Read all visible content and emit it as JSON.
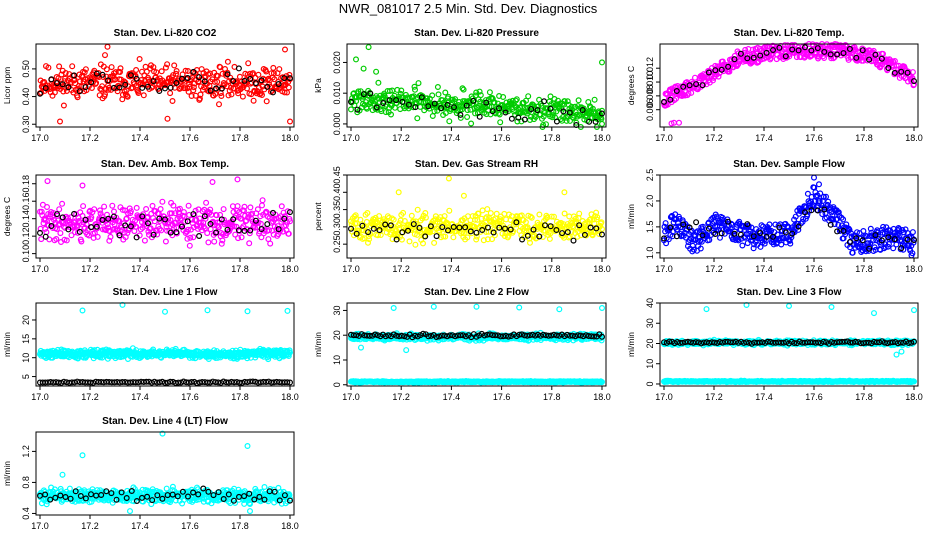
{
  "page": {
    "title": "NWR_081017  2.5 Min. Std. Dev. Diagnostics"
  },
  "colors": {
    "red": "#ff0000",
    "green": "#00cc00",
    "magenta": "#ff00ff",
    "yellow": "#ffff00",
    "blue": "#0000ff",
    "cyan": "#00ffff",
    "black": "#000000"
  },
  "chart_data": [
    {
      "type": "scatter",
      "title": "Stan. Dev. Li-820 CO2",
      "ylabel": "Licor ppm",
      "xlim": [
        17.0,
        18.0
      ],
      "xticks": [
        "17.0",
        "17.2",
        "17.4",
        "17.6",
        "17.8",
        "18.0"
      ],
      "ylim": [
        0.29,
        0.59
      ],
      "yticks": [
        "0.30",
        "0.40",
        "0.50"
      ],
      "ytick_values": [
        0.3,
        0.4,
        0.5
      ],
      "color": "#ff0000",
      "series": [
        {
          "name": "main",
          "band": [
            0.36,
            0.54
          ],
          "n": 420,
          "seed": 11
        },
        {
          "name": "reference",
          "color": "#000000",
          "band": [
            0.38,
            0.52
          ],
          "n": 45,
          "seed": 12
        }
      ],
      "outliers": [
        [
          17.27,
          0.58
        ],
        [
          17.26,
          0.55
        ],
        [
          18.0,
          0.31
        ],
        [
          17.98,
          0.57
        ],
        [
          17.08,
          0.31
        ],
        [
          17.51,
          0.32
        ]
      ]
    },
    {
      "type": "scatter",
      "title": "Stan. Dev. Li-820 Pressure",
      "ylabel": "kPa",
      "xlim": [
        17.0,
        18.0
      ],
      "xticks": [
        "17.0",
        "17.2",
        "17.4",
        "17.6",
        "17.8",
        "18.0"
      ],
      "ylim": [
        -0.001,
        0.026
      ],
      "yticks": [
        "0.000",
        "0.010",
        "0.020"
      ],
      "ytick_values": [
        0.0,
        0.01,
        0.02
      ],
      "color": "#00cc00",
      "series": [
        {
          "name": "main",
          "band": [
            0.002,
            0.015
          ],
          "n": 440,
          "seed": 21,
          "trend": -0.004
        },
        {
          "name": "reference",
          "color": "#000000",
          "band": [
            0.003,
            0.012
          ],
          "n": 40,
          "seed": 22,
          "trend": -0.004
        }
      ],
      "outliers": [
        [
          17.07,
          0.025
        ],
        [
          17.02,
          0.021
        ],
        [
          18.0,
          0.02
        ],
        [
          17.05,
          0.018
        ],
        [
          17.1,
          0.017
        ],
        [
          18.0,
          0.0
        ]
      ]
    },
    {
      "type": "scatter",
      "title": "Stan. Dev. Li-820 Temp.",
      "ylabel": "degrees C",
      "xlim": [
        17.0,
        18.0
      ],
      "xticks": [
        "17.0",
        "17.2",
        "17.4",
        "17.6",
        "17.8",
        "18.0"
      ],
      "ylim": [
        0.0035,
        0.0155
      ],
      "yticks": [
        "0.006",
        "0.008",
        "0.010",
        "0.012"
      ],
      "ytick_values": [
        0.006,
        0.008,
        0.01,
        0.012
      ],
      "color": "#ff00ff",
      "series": [
        {
          "name": "main",
          "n": 460,
          "seed": 31,
          "curve": [
            [
              17.0,
              0.0075
            ],
            [
              17.15,
              0.01
            ],
            [
              17.3,
              0.0135
            ],
            [
              17.5,
              0.0145
            ],
            [
              17.7,
              0.0145
            ],
            [
              17.85,
              0.0135
            ],
            [
              18.0,
              0.0105
            ]
          ],
          "spread": 0.0022
        },
        {
          "name": "reference",
          "color": "#000000",
          "n": 40,
          "seed": 32,
          "curve": [
            [
              17.0,
              0.0075
            ],
            [
              17.15,
              0.01
            ],
            [
              17.3,
              0.0135
            ],
            [
              17.5,
              0.0145
            ],
            [
              17.7,
              0.0145
            ],
            [
              17.85,
              0.0135
            ],
            [
              18.0,
              0.0105
            ]
          ],
          "spread": 0.0015
        }
      ],
      "outliers": [
        [
          17.03,
          0.004
        ],
        [
          17.04,
          0.0041
        ],
        [
          17.06,
          0.0041
        ]
      ]
    },
    {
      "type": "scatter",
      "title": "Stan. Dev. Amb. Box Temp.",
      "ylabel": "degrees C",
      "xlim": [
        17.0,
        18.0
      ],
      "xticks": [
        "17.0",
        "17.2",
        "17.4",
        "17.6",
        "17.8",
        "18.0"
      ],
      "ylim": [
        0.095,
        0.19
      ],
      "yticks": [
        "0.10",
        "0.12",
        "0.14",
        "0.16",
        "0.18"
      ],
      "ytick_values": [
        0.1,
        0.12,
        0.14,
        0.16,
        0.18
      ],
      "color": "#ff00ff",
      "series": [
        {
          "name": "main",
          "band": [
            0.105,
            0.165
          ],
          "n": 430,
          "seed": 41
        },
        {
          "name": "reference",
          "color": "#000000",
          "band": [
            0.11,
            0.155
          ],
          "n": 45,
          "seed": 42
        }
      ],
      "outliers": [
        [
          17.79,
          0.185
        ],
        [
          17.69,
          0.182
        ],
        [
          17.17,
          0.178
        ],
        [
          17.03,
          0.183
        ]
      ]
    },
    {
      "type": "scatter",
      "title": "Stan. Dev. Gas Stream RH",
      "ylabel": "percent",
      "xlim": [
        17.0,
        18.0
      ],
      "xticks": [
        "17.0",
        "17.2",
        "17.4",
        "17.6",
        "17.8",
        "18.0"
      ],
      "ylim": [
        0.21,
        0.45
      ],
      "yticks": [
        "0.25",
        "0.30",
        "0.35",
        "0.40",
        "0.45"
      ],
      "ytick_values": [
        0.25,
        0.3,
        0.35,
        0.4,
        0.45
      ],
      "color": "#ffff00",
      "series": [
        {
          "name": "main",
          "band": [
            0.24,
            0.36
          ],
          "n": 430,
          "seed": 51
        },
        {
          "name": "reference",
          "color": "#000000",
          "band": [
            0.25,
            0.33
          ],
          "n": 45,
          "seed": 52
        }
      ],
      "outliers": [
        [
          17.39,
          0.44
        ],
        [
          17.19,
          0.4
        ],
        [
          17.85,
          0.4
        ],
        [
          17.45,
          0.39
        ]
      ]
    },
    {
      "type": "scatter",
      "title": "Stan. Dev. Sample Flow",
      "ylabel": "ml/min",
      "xlim": [
        17.0,
        18.0
      ],
      "xticks": [
        "17.0",
        "17.2",
        "17.4",
        "17.6",
        "17.8",
        "18.0"
      ],
      "ylim": [
        0.9,
        2.5
      ],
      "yticks": [
        "1.0",
        "1.5",
        "2.0",
        "2.5"
      ],
      "ytick_values": [
        1.0,
        1.5,
        2.0,
        2.5
      ],
      "color": "#0000ff",
      "series": [
        {
          "name": "main",
          "n": 470,
          "seed": 61,
          "curve": [
            [
              17.0,
              1.35
            ],
            [
              17.05,
              1.6
            ],
            [
              17.12,
              1.15
            ],
            [
              17.2,
              1.55
            ],
            [
              17.35,
              1.3
            ],
            [
              17.5,
              1.35
            ],
            [
              17.6,
              2.1
            ],
            [
              17.68,
              1.7
            ],
            [
              17.75,
              1.2
            ],
            [
              17.9,
              1.3
            ],
            [
              18.0,
              1.2
            ]
          ],
          "spread": 0.45
        },
        {
          "name": "reference",
          "color": "#000000",
          "n": 40,
          "seed": 62,
          "curve": [
            [
              17.0,
              1.35
            ],
            [
              17.2,
              1.5
            ],
            [
              17.5,
              1.35
            ],
            [
              17.62,
              1.9
            ],
            [
              17.75,
              1.2
            ],
            [
              18.0,
              1.2
            ]
          ],
          "spread": 0.3
        }
      ],
      "outliers": [
        [
          17.6,
          2.45
        ],
        [
          17.99,
          0.95
        ],
        [
          17.62,
          2.32
        ]
      ]
    },
    {
      "type": "scatter",
      "title": "Stan. Dev. Line 1 Flow",
      "ylabel": "ml/min",
      "xlim": [
        17.0,
        18.0
      ],
      "xticks": [
        "17.0",
        "17.2",
        "17.4",
        "17.6",
        "17.8",
        "18.0"
      ],
      "ylim": [
        2.5,
        24.5
      ],
      "yticks": [
        "5",
        "10",
        "15",
        "20"
      ],
      "ytick_values": [
        5,
        10,
        15,
        20
      ],
      "color": "#00ffff",
      "series": [
        {
          "name": "main",
          "band": [
            9.4,
            12.6
          ],
          "n": 620,
          "seed": 71
        },
        {
          "name": "reference",
          "color": "#000000",
          "band": [
            3.2,
            3.8
          ],
          "n": 95,
          "seed": 72
        }
      ],
      "outliers": [
        [
          17.17,
          22.5
        ],
        [
          17.33,
          24.0
        ],
        [
          17.5,
          22.2
        ],
        [
          17.67,
          22.6
        ],
        [
          17.83,
          22.3
        ],
        [
          17.99,
          22.4
        ]
      ]
    },
    {
      "type": "scatter",
      "title": "Stan. Dev. Line 2 Flow",
      "ylabel": "ml/min",
      "xlim": [
        17.0,
        18.0
      ],
      "xticks": [
        "17.0",
        "17.2",
        "17.4",
        "17.6",
        "17.8",
        "18.0"
      ],
      "ylim": [
        -0.5,
        33
      ],
      "yticks": [
        "0",
        "10",
        "20",
        "30"
      ],
      "ytick_values": [
        0,
        10,
        20,
        30
      ],
      "color": "#00ffff",
      "series": [
        {
          "name": "main",
          "band": [
            17.3,
            21.2
          ],
          "n": 560,
          "seed": 81
        },
        {
          "name": "baseline",
          "band": [
            0.8,
            1.6
          ],
          "n": 420,
          "seed": 83
        },
        {
          "name": "reference",
          "color": "#000000",
          "band": [
            19.0,
            20.8
          ],
          "n": 95,
          "seed": 82
        }
      ],
      "outliers": [
        [
          17.17,
          31.0
        ],
        [
          17.33,
          31.5
        ],
        [
          17.5,
          31.5
        ],
        [
          17.67,
          31.2
        ],
        [
          17.83,
          30.5
        ],
        [
          18.0,
          31.0
        ],
        [
          17.22,
          14.0
        ],
        [
          17.04,
          15.0
        ]
      ]
    },
    {
      "type": "scatter",
      "title": "Stan. Dev. Line 3 Flow",
      "ylabel": "ml/min",
      "xlim": [
        17.0,
        18.0
      ],
      "xticks": [
        "17.0",
        "17.2",
        "17.4",
        "17.6",
        "17.8",
        "18.0"
      ],
      "ylim": [
        -1,
        40
      ],
      "yticks": [
        "0",
        "10",
        "20",
        "30",
        "40"
      ],
      "ytick_values": [
        0,
        10,
        20,
        30,
        40
      ],
      "color": "#00ffff",
      "series": [
        {
          "name": "main",
          "band": [
            18.8,
            22.0
          ],
          "n": 540,
          "seed": 91
        },
        {
          "name": "baseline",
          "band": [
            0.8,
            1.7
          ],
          "n": 420,
          "seed": 93
        },
        {
          "name": "reference",
          "color": "#000000",
          "band": [
            19.6,
            21.4
          ],
          "n": 95,
          "seed": 92
        }
      ],
      "outliers": [
        [
          17.17,
          37.0
        ],
        [
          17.33,
          39.0
        ],
        [
          17.5,
          38.5
        ],
        [
          17.67,
          38.0
        ],
        [
          17.84,
          35.0
        ],
        [
          18.0,
          36.5
        ],
        [
          17.95,
          16.0
        ],
        [
          17.93,
          14.5
        ]
      ]
    },
    {
      "type": "scatter",
      "title": "Stan. Dev. Line 4 (LT) Flow",
      "ylabel": "ml/min",
      "xlim": [
        17.0,
        18.0
      ],
      "xticks": [
        "17.0",
        "17.2",
        "17.4",
        "17.6",
        "17.8",
        "18.0"
      ],
      "ylim": [
        0.38,
        1.45
      ],
      "yticks": [
        "0.4",
        "0.8",
        "1.2"
      ],
      "ytick_values": [
        0.4,
        0.8,
        1.2
      ],
      "color": "#00ffff",
      "series": [
        {
          "name": "main",
          "band": [
            0.5,
            0.76
          ],
          "n": 520,
          "seed": 101
        },
        {
          "name": "reference",
          "color": "#000000",
          "band": [
            0.52,
            0.74
          ],
          "n": 50,
          "seed": 102
        }
      ],
      "outliers": [
        [
          17.49,
          1.43
        ],
        [
          17.83,
          1.27
        ],
        [
          17.17,
          1.15
        ],
        [
          17.36,
          0.43
        ],
        [
          17.84,
          0.43
        ],
        [
          17.09,
          0.9
        ]
      ]
    }
  ]
}
